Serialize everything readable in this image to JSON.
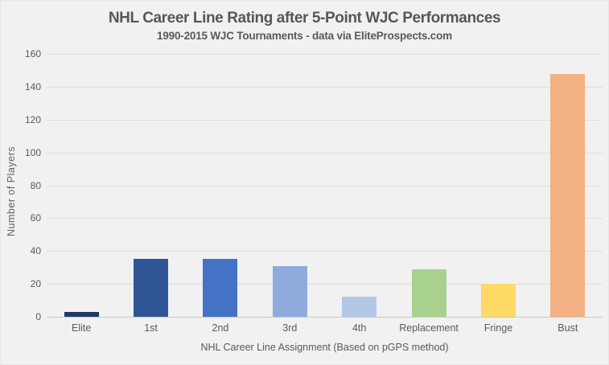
{
  "chart_data": {
    "type": "bar",
    "title": "NHL Career Line Rating after 5-Point WJC Performances",
    "subtitle": "1990-2015 WJC Tournaments - data via EliteProspects.com",
    "xlabel": "NHL Career Line Assignment (Based on pGPS method)",
    "ylabel": "Number of Players",
    "categories": [
      "Elite",
      "1st",
      "2nd",
      "3rd",
      "4th",
      "Replacement",
      "Fringe",
      "Bust"
    ],
    "values": [
      3,
      35,
      35,
      31,
      12,
      29,
      20,
      148
    ],
    "bar_colors": [
      "#1f3864",
      "#2f5597",
      "#4472c4",
      "#8faadc",
      "#b4c7e7",
      "#a9d18e",
      "#ffd966",
      "#f4b183"
    ],
    "ylim": [
      0,
      160
    ],
    "ytick_step": 20,
    "grid": true,
    "legend_position": "none"
  },
  "theme": {
    "background": "#f1f1f2",
    "gridline": "#dddddd",
    "axis_line": "#c9c9c9",
    "text": "#595959"
  }
}
